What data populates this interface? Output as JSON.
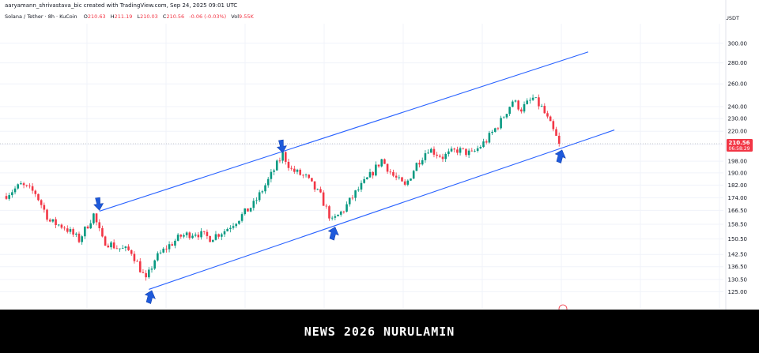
{
  "header": {
    "attribution": "aaryamann_shrivastava_bic created with TradingView.com, Sep 24, 2025 09:01 UTC",
    "symbol": "Solana / Tether · 8h · KuCoin",
    "open_label": "O",
    "open": "210.63",
    "high_label": "H",
    "high": "211.19",
    "low_label": "L",
    "low": "210.03",
    "close_label": "C",
    "close": "210.56",
    "change": "-0.06 (-0.03%)",
    "volume_label": "Vol",
    "volume": "9.55K"
  },
  "currency": "USDT",
  "price_badge": {
    "price": "210.56",
    "countdown": "06:58:29"
  },
  "footer_text": "NEWS 2026 NURULAMIN",
  "colors": {
    "up": "#089981",
    "down": "#f23645",
    "channel": "#2962ff",
    "arrow": "#1e5adb"
  },
  "chart_data": {
    "type": "candlestick",
    "y_scale": "log",
    "ylim": [
      121,
      310
    ],
    "y_ticks": [
      300,
      280,
      260,
      240,
      230,
      220,
      210,
      198,
      190,
      182,
      174,
      166.5,
      158.5,
      150.5,
      142.5,
      136.5,
      130.5,
      125
    ],
    "y_tick_labels": [
      "300.00",
      "280.00",
      "260.00",
      "240.00",
      "230.00",
      "220.00",
      "210.00",
      "198.00",
      "190.00",
      "182.00",
      "174.00",
      "166.50",
      "158.50",
      "150.50",
      "142.50",
      "136.50",
      "130.50",
      "125.00"
    ],
    "anchors": [
      {
        "i": 0,
        "p": 176
      },
      {
        "i": 5,
        "p": 182
      },
      {
        "i": 10,
        "p": 177
      },
      {
        "i": 15,
        "p": 160
      },
      {
        "i": 20,
        "p": 157
      },
      {
        "i": 25,
        "p": 150
      },
      {
        "i": 30,
        "p": 164
      },
      {
        "i": 33,
        "p": 150
      },
      {
        "i": 38,
        "p": 146
      },
      {
        "i": 43,
        "p": 144
      },
      {
        "i": 48,
        "p": 130
      },
      {
        "i": 51,
        "p": 140
      },
      {
        "i": 55,
        "p": 146
      },
      {
        "i": 60,
        "p": 152
      },
      {
        "i": 65,
        "p": 154
      },
      {
        "i": 70,
        "p": 151
      },
      {
        "i": 75,
        "p": 155
      },
      {
        "i": 80,
        "p": 162
      },
      {
        "i": 85,
        "p": 170
      },
      {
        "i": 90,
        "p": 185
      },
      {
        "i": 95,
        "p": 203
      },
      {
        "i": 98,
        "p": 192
      },
      {
        "i": 103,
        "p": 187
      },
      {
        "i": 108,
        "p": 175
      },
      {
        "i": 112,
        "p": 160
      },
      {
        "i": 116,
        "p": 167
      },
      {
        "i": 120,
        "p": 177
      },
      {
        "i": 125,
        "p": 188
      },
      {
        "i": 129,
        "p": 199
      },
      {
        "i": 133,
        "p": 188
      },
      {
        "i": 137,
        "p": 181
      },
      {
        "i": 141,
        "p": 196
      },
      {
        "i": 145,
        "p": 207
      },
      {
        "i": 150,
        "p": 201
      },
      {
        "i": 155,
        "p": 206
      },
      {
        "i": 160,
        "p": 203
      },
      {
        "i": 165,
        "p": 213
      },
      {
        "i": 170,
        "p": 228
      },
      {
        "i": 174,
        "p": 245
      },
      {
        "i": 177,
        "p": 238
      },
      {
        "i": 181,
        "p": 247
      },
      {
        "i": 184,
        "p": 239
      },
      {
        "i": 187,
        "p": 225
      },
      {
        "i": 190,
        "p": 210.56
      }
    ],
    "channel": {
      "upper": [
        {
          "i": 32,
          "p": 166
        },
        {
          "i": 200,
          "p": 291
        }
      ],
      "lower": [
        {
          "i": 49,
          "p": 126
        },
        {
          "i": 209,
          "p": 221
        }
      ]
    },
    "arrow_markers": [
      {
        "i": 32,
        "p": 166.5,
        "dir": "down"
      },
      {
        "i": 95,
        "p": 204,
        "dir": "down"
      },
      {
        "i": 50,
        "p": 125.5,
        "dir": "up"
      },
      {
        "i": 113,
        "p": 157,
        "dir": "up"
      },
      {
        "i": 191,
        "p": 206,
        "dir": "up"
      }
    ],
    "last_price": 210.56
  }
}
